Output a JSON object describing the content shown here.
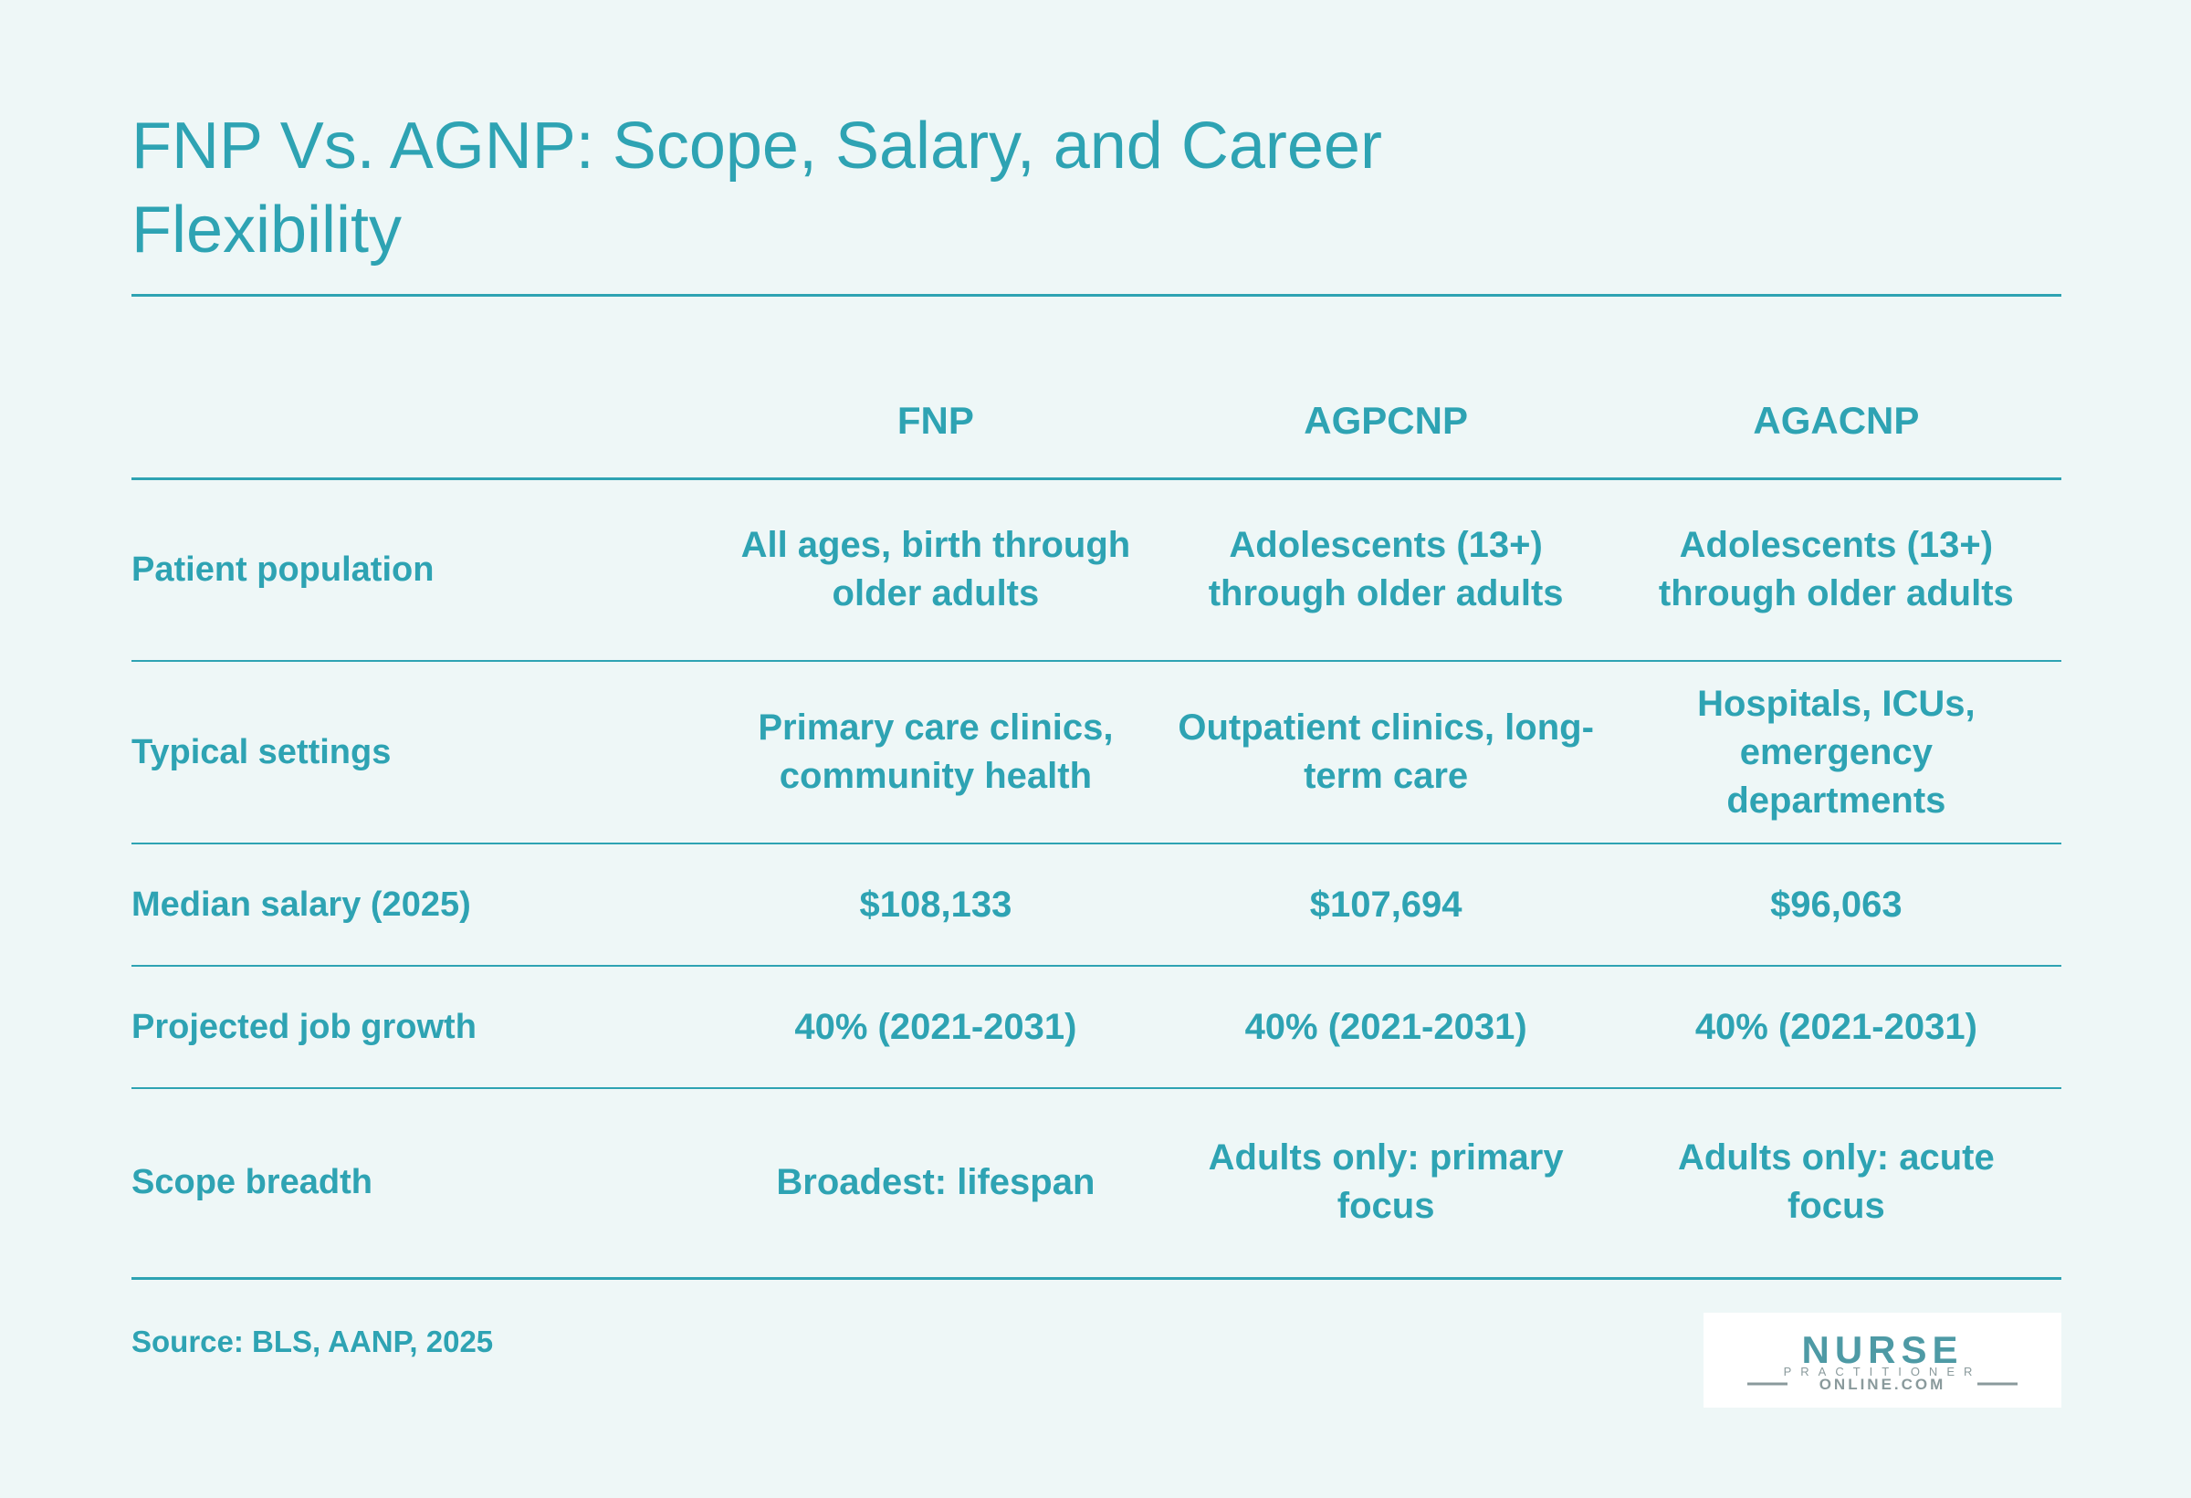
{
  "title": "FNP Vs. AGNP: Scope, Salary, and Career Flexibility",
  "table": {
    "columns": [
      "",
      "FNP",
      "AGPCNP",
      "AGACNP"
    ],
    "rows": [
      {
        "label": "Patient population",
        "values": [
          "All ages, birth through older adults",
          "Adolescents (13+) through older adults",
          "Adolescents (13+) through older adults"
        ]
      },
      {
        "label": "Typical settings",
        "values": [
          "Primary care clinics, community health",
          "Outpatient clinics, long-term care",
          "Hospitals, ICUs, emergency departments"
        ]
      },
      {
        "label": "Median salary (2025)",
        "values": [
          "$108,133",
          "$107,694",
          "$96,063"
        ]
      },
      {
        "label": "Projected job growth",
        "values": [
          "40% (2021-2031)",
          "40% (2021-2031)",
          "40% (2021-2031)"
        ]
      },
      {
        "label": "Scope breadth",
        "values": [
          "Broadest: lifespan",
          "Adults only: primary focus",
          "Adults only: acute focus"
        ]
      }
    ]
  },
  "source": "Source: BLS, AANP, 2025",
  "logo": {
    "line1": "NURSE",
    "line2": "PRACTITIONER",
    "line3": "ONLINE.COM"
  },
  "colors": {
    "accent": "#2ea3b3",
    "background": "#eef7f7",
    "logo_text": "#4e9aa5",
    "logo_subtext": "#8a9a9c"
  }
}
